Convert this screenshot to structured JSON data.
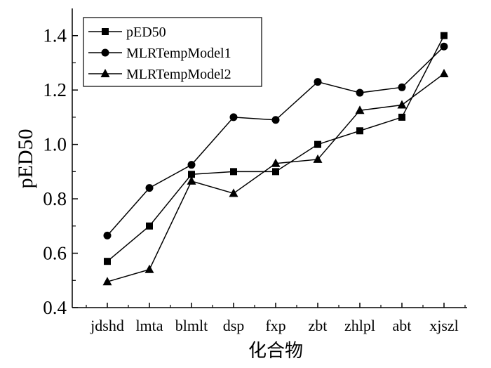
{
  "chart_data": {
    "type": "line",
    "title": "",
    "xlabel": "化合物",
    "ylabel": "pED50",
    "categories": [
      "jdshd",
      "lmta",
      "blmlt",
      "dsp",
      "fxp",
      "zbt",
      "zhlpl",
      "abt",
      "xjszl"
    ],
    "ylim": [
      0.4,
      1.5
    ],
    "yticks": [
      0.4,
      0.6,
      0.8,
      1.0,
      1.2,
      1.4
    ],
    "ytick_labels": [
      "0.4",
      "0.6",
      "0.8",
      "1.0",
      "1.2",
      "1.4"
    ],
    "grid": false,
    "legend_position": "top-left",
    "series": [
      {
        "name": "pED50",
        "marker": "square",
        "color": "#000000",
        "values": [
          0.57,
          0.7,
          0.89,
          0.9,
          0.9,
          1.0,
          1.05,
          1.1,
          1.4
        ]
      },
      {
        "name": "MLRTempModel1",
        "marker": "circle",
        "color": "#000000",
        "values": [
          0.665,
          0.84,
          0.925,
          1.1,
          1.09,
          1.23,
          1.19,
          1.21,
          1.36
        ]
      },
      {
        "name": "MLRTempModel2",
        "marker": "triangle",
        "color": "#000000",
        "values": [
          0.495,
          0.54,
          0.865,
          0.82,
          0.93,
          0.945,
          1.125,
          1.145,
          1.26
        ]
      }
    ]
  }
}
